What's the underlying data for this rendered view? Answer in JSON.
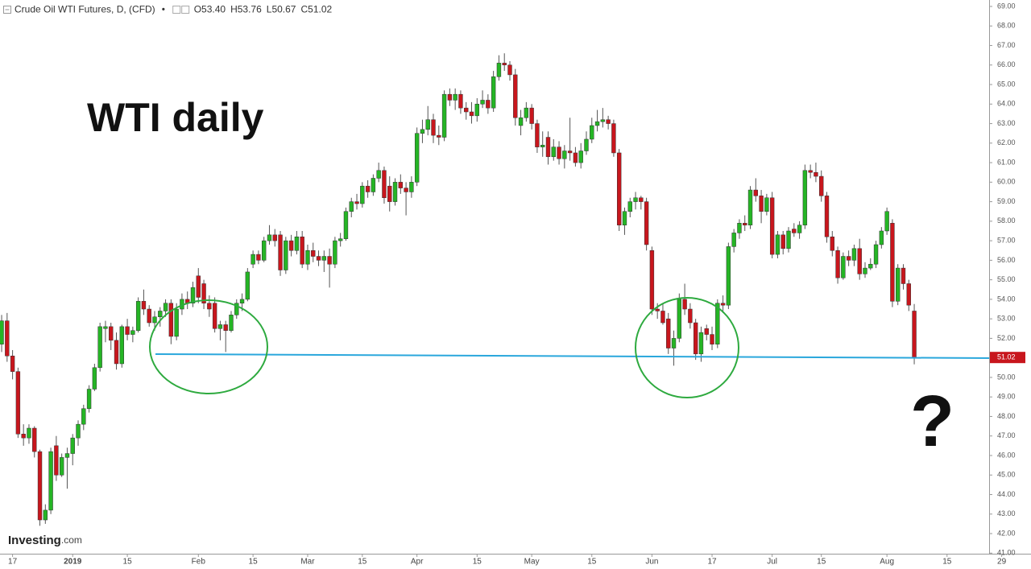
{
  "header": {
    "title": "Crude Oil WTI Futures, D, (CFD)",
    "fields": [
      {
        "label": "O",
        "value": "53.40"
      },
      {
        "label": "H",
        "value": "53.76"
      },
      {
        "label": "L",
        "value": "50.67"
      },
      {
        "label": "C",
        "value": "51.02"
      }
    ]
  },
  "branding": {
    "name": "Investing",
    "suffix": ".com"
  },
  "chart_data": {
    "type": "candlestick",
    "annotations": [
      "WTI daily",
      "?"
    ],
    "up_color": "#25b525",
    "down_color": "#c8161d",
    "xlim": [
      -0.3,
      180.7
    ],
    "ylim": [
      40.97,
      69.33
    ],
    "xticks": [
      {
        "value": 2,
        "label": "17"
      },
      {
        "value": 13,
        "label": "2019"
      },
      {
        "value": 23,
        "label": "15"
      },
      {
        "value": 36,
        "label": "Feb"
      },
      {
        "value": 46,
        "label": "15"
      },
      {
        "value": 56,
        "label": "Mar"
      },
      {
        "value": 66,
        "label": "15"
      },
      {
        "value": 76,
        "label": "Apr"
      },
      {
        "value": 87,
        "label": "15"
      },
      {
        "value": 97,
        "label": "May"
      },
      {
        "value": 108,
        "label": "15"
      },
      {
        "value": 119,
        "label": "Jun"
      },
      {
        "value": 130,
        "label": "17"
      },
      {
        "value": 141,
        "label": "Jul"
      },
      {
        "value": 150,
        "label": "15"
      },
      {
        "value": 162,
        "label": "Aug"
      },
      {
        "value": 173,
        "label": "15"
      },
      {
        "value": 183,
        "label": "29"
      }
    ],
    "yticks": [
      {
        "value": 41,
        "label": "41.00"
      },
      {
        "value": 42,
        "label": "42.00"
      },
      {
        "value": 43,
        "label": "43.00"
      },
      {
        "value": 44,
        "label": "44.00"
      },
      {
        "value": 45,
        "label": "45.00"
      },
      {
        "value": 46,
        "label": "46.00"
      },
      {
        "value": 47,
        "label": "47.00"
      },
      {
        "value": 48,
        "label": "48.00"
      },
      {
        "value": 49,
        "label": "49.00"
      },
      {
        "value": 50,
        "label": "50.00"
      },
      {
        "value": 51,
        "label": "51.00"
      },
      {
        "value": 52,
        "label": "52.00"
      },
      {
        "value": 53,
        "label": "53.00"
      },
      {
        "value": 54,
        "label": "54.00"
      },
      {
        "value": 55,
        "label": "55.00"
      },
      {
        "value": 56,
        "label": "56.00"
      },
      {
        "value": 57,
        "label": "57.00"
      },
      {
        "value": 58,
        "label": "58.00"
      },
      {
        "value": 59,
        "label": "59.00"
      },
      {
        "value": 60,
        "label": "60.00"
      },
      {
        "value": 61,
        "label": "61.00"
      },
      {
        "value": 62,
        "label": "62.00"
      },
      {
        "value": 63,
        "label": "63.00"
      },
      {
        "value": 64,
        "label": "64.00"
      },
      {
        "value": 65,
        "label": "65.00"
      },
      {
        "value": 66,
        "label": "66.00"
      },
      {
        "value": 67,
        "label": "67.00"
      },
      {
        "value": 68,
        "label": "68.00"
      },
      {
        "value": 69,
        "label": "69.00"
      }
    ],
    "ohlc": [
      [
        51.7,
        53.2,
        51.3,
        52.9
      ],
      [
        52.9,
        53.3,
        50.8,
        51.1
      ],
      [
        51.1,
        51.4,
        49.9,
        50.3
      ],
      [
        50.3,
        50.5,
        46.9,
        47.1
      ],
      [
        47.1,
        47.6,
        46.5,
        46.9
      ],
      [
        46.9,
        47.6,
        46.6,
        47.4
      ],
      [
        47.4,
        47.5,
        45.9,
        46.2
      ],
      [
        46.2,
        46.3,
        42.4,
        42.7
      ],
      [
        42.7,
        43.5,
        42.5,
        43.2
      ],
      [
        43.2,
        46.4,
        43.0,
        46.2
      ],
      [
        46.5,
        47.0,
        44.7,
        45.0
      ],
      [
        45.0,
        46.1,
        44.9,
        45.9
      ],
      [
        45.9,
        46.4,
        44.3,
        46.1
      ],
      [
        46.1,
        47.1,
        45.5,
        46.9
      ],
      [
        46.9,
        47.8,
        46.5,
        47.6
      ],
      [
        47.6,
        48.6,
        47.3,
        48.4
      ],
      [
        48.4,
        49.6,
        48.2,
        49.4
      ],
      [
        49.4,
        50.7,
        49.3,
        50.5
      ],
      [
        50.5,
        52.8,
        50.3,
        52.6
      ],
      [
        52.5,
        52.9,
        51.8,
        52.6
      ],
      [
        52.6,
        52.8,
        51.4,
        51.9
      ],
      [
        51.9,
        52.3,
        50.4,
        50.7
      ],
      [
        50.7,
        52.7,
        50.5,
        52.6
      ],
      [
        52.6,
        53.0,
        51.9,
        52.2
      ],
      [
        52.2,
        52.6,
        51.8,
        52.4
      ],
      [
        52.4,
        54.1,
        52.3,
        53.9
      ],
      [
        53.9,
        54.5,
        53.2,
        53.5
      ],
      [
        53.5,
        53.7,
        52.6,
        52.8
      ],
      [
        52.8,
        53.4,
        52.4,
        53.1
      ],
      [
        53.1,
        53.6,
        52.6,
        53.4
      ],
      [
        53.4,
        54.0,
        53.1,
        53.8
      ],
      [
        53.8,
        54.0,
        51.7,
        52.1
      ],
      [
        52.1,
        53.8,
        51.9,
        53.5
      ],
      [
        53.5,
        54.3,
        53.2,
        54.0
      ],
      [
        54.0,
        54.4,
        53.5,
        53.8
      ],
      [
        53.8,
        54.9,
        53.6,
        54.6
      ],
      [
        55.2,
        55.6,
        53.8,
        54.1
      ],
      [
        54.8,
        55.0,
        53.5,
        53.8
      ],
      [
        53.8,
        54.2,
        53.1,
        53.5
      ],
      [
        53.8,
        54.1,
        52.3,
        52.5
      ],
      [
        52.5,
        52.9,
        51.9,
        52.7
      ],
      [
        52.7,
        52.9,
        51.3,
        52.4
      ],
      [
        52.4,
        53.4,
        52.3,
        53.2
      ],
      [
        53.2,
        54.0,
        53.0,
        53.8
      ],
      [
        53.8,
        54.3,
        53.4,
        54.0
      ],
      [
        54.0,
        55.6,
        53.9,
        55.4
      ],
      [
        55.8,
        56.5,
        55.6,
        56.3
      ],
      [
        56.3,
        56.5,
        55.8,
        56.0
      ],
      [
        56.0,
        57.2,
        55.9,
        57.0
      ],
      [
        57.0,
        57.8,
        56.8,
        57.3
      ],
      [
        57.3,
        57.6,
        56.7,
        57.0
      ],
      [
        57.3,
        57.5,
        55.2,
        55.5
      ],
      [
        55.5,
        57.2,
        55.3,
        57.0
      ],
      [
        57.0,
        57.3,
        56.2,
        56.5
      ],
      [
        56.5,
        57.5,
        56.3,
        57.2
      ],
      [
        57.2,
        57.5,
        55.6,
        55.8
      ],
      [
        55.8,
        56.8,
        55.5,
        56.5
      ],
      [
        56.5,
        56.9,
        55.9,
        56.2
      ],
      [
        56.2,
        56.5,
        55.7,
        56.0
      ],
      [
        56.0,
        56.5,
        55.4,
        56.2
      ],
      [
        56.2,
        56.6,
        54.6,
        55.8
      ],
      [
        55.8,
        57.2,
        55.6,
        57.0
      ],
      [
        57.0,
        57.4,
        56.7,
        57.1
      ],
      [
        57.1,
        58.7,
        57.0,
        58.5
      ],
      [
        58.5,
        59.2,
        58.2,
        59.0
      ],
      [
        59.0,
        59.4,
        58.6,
        58.9
      ],
      [
        58.9,
        60.0,
        58.7,
        59.8
      ],
      [
        59.8,
        60.1,
        59.2,
        59.5
      ],
      [
        59.5,
        60.4,
        59.3,
        60.2
      ],
      [
        60.2,
        61.0,
        60.0,
        60.6
      ],
      [
        60.6,
        60.8,
        58.9,
        59.2
      ],
      [
        59.8,
        60.3,
        58.5,
        59.0
      ],
      [
        59.0,
        60.2,
        58.8,
        60.0
      ],
      [
        60.0,
        60.4,
        59.4,
        59.7
      ],
      [
        59.7,
        60.0,
        58.3,
        59.5
      ],
      [
        59.5,
        60.3,
        59.2,
        60.0
      ],
      [
        60.0,
        62.8,
        59.8,
        62.5
      ],
      [
        62.5,
        63.2,
        62.0,
        62.7
      ],
      [
        62.7,
        63.9,
        62.4,
        63.2
      ],
      [
        63.2,
        63.5,
        62.0,
        62.4
      ],
      [
        62.4,
        62.9,
        61.9,
        62.3
      ],
      [
        62.3,
        64.7,
        62.1,
        64.5
      ],
      [
        64.5,
        64.8,
        63.9,
        64.2
      ],
      [
        64.2,
        64.8,
        63.7,
        64.5
      ],
      [
        64.5,
        64.7,
        63.5,
        63.8
      ],
      [
        63.8,
        64.1,
        63.2,
        63.6
      ],
      [
        63.6,
        64.1,
        63.0,
        63.4
      ],
      [
        63.4,
        64.3,
        63.1,
        64.0
      ],
      [
        64.0,
        64.7,
        63.8,
        64.2
      ],
      [
        64.2,
        64.5,
        63.5,
        63.8
      ],
      [
        63.8,
        65.7,
        63.6,
        65.4
      ],
      [
        65.4,
        66.5,
        65.2,
        66.1
      ],
      [
        66.1,
        66.6,
        65.7,
        66.0
      ],
      [
        66.0,
        66.2,
        65.2,
        65.5
      ],
      [
        65.5,
        65.8,
        62.9,
        63.3
      ],
      [
        62.9,
        63.7,
        62.4,
        63.3
      ],
      [
        63.3,
        64.1,
        63.1,
        63.8
      ],
      [
        63.8,
        64.0,
        62.7,
        63.0
      ],
      [
        63.0,
        63.2,
        61.5,
        61.8
      ],
      [
        61.8,
        62.6,
        61.3,
        61.9
      ],
      [
        62.3,
        62.6,
        60.9,
        61.3
      ],
      [
        61.3,
        62.2,
        61.1,
        61.8
      ],
      [
        61.8,
        62.1,
        60.9,
        61.2
      ],
      [
        61.2,
        61.9,
        60.7,
        61.6
      ],
      [
        61.6,
        63.3,
        61.1,
        61.5
      ],
      [
        61.5,
        61.8,
        60.8,
        61.0
      ],
      [
        61.0,
        62.0,
        60.7,
        61.6
      ],
      [
        61.6,
        62.6,
        61.4,
        62.2
      ],
      [
        62.2,
        63.3,
        62.0,
        62.9
      ],
      [
        62.9,
        63.7,
        62.6,
        63.1
      ],
      [
        63.1,
        63.8,
        62.8,
        63.2
      ],
      [
        63.2,
        63.4,
        62.7,
        63.0
      ],
      [
        63.0,
        63.2,
        61.3,
        61.5
      ],
      [
        61.5,
        61.7,
        57.5,
        57.8
      ],
      [
        57.8,
        58.7,
        57.3,
        58.5
      ],
      [
        58.5,
        59.2,
        58.2,
        59.0
      ],
      [
        59.0,
        59.5,
        58.6,
        59.2
      ],
      [
        59.2,
        59.3,
        58.6,
        59.0
      ],
      [
        59.0,
        59.2,
        56.5,
        56.8
      ],
      [
        56.5,
        56.7,
        53.2,
        53.5
      ],
      [
        53.5,
        53.8,
        53.0,
        53.4
      ],
      [
        53.4,
        53.8,
        52.7,
        52.8
      ],
      [
        53.0,
        53.3,
        51.2,
        51.5
      ],
      [
        51.5,
        52.4,
        50.6,
        52.0
      ],
      [
        52.0,
        54.3,
        51.8,
        54.0
      ],
      [
        54.0,
        54.8,
        53.2,
        53.5
      ],
      [
        53.5,
        53.8,
        52.5,
        52.8
      ],
      [
        52.8,
        53.0,
        50.9,
        51.2
      ],
      [
        51.2,
        52.6,
        50.8,
        52.3
      ],
      [
        52.5,
        52.7,
        51.9,
        52.2
      ],
      [
        52.2,
        52.6,
        51.4,
        51.7
      ],
      [
        51.7,
        54.0,
        51.5,
        53.8
      ],
      [
        53.8,
        54.2,
        53.3,
        53.7
      ],
      [
        53.7,
        56.9,
        53.5,
        56.7
      ],
      [
        56.7,
        57.6,
        56.4,
        57.4
      ],
      [
        57.4,
        58.1,
        57.1,
        57.9
      ],
      [
        57.9,
        58.3,
        57.5,
        57.8
      ],
      [
        57.8,
        59.8,
        57.6,
        59.6
      ],
      [
        59.6,
        60.2,
        59.0,
        59.3
      ],
      [
        59.3,
        59.6,
        57.9,
        58.5
      ],
      [
        58.5,
        59.4,
        58.3,
        59.2
      ],
      [
        59.2,
        59.5,
        56.1,
        56.3
      ],
      [
        56.3,
        57.5,
        56.1,
        57.3
      ],
      [
        57.3,
        57.5,
        56.3,
        56.6
      ],
      [
        56.6,
        57.7,
        56.4,
        57.5
      ],
      [
        57.6,
        57.9,
        57.2,
        57.4
      ],
      [
        57.4,
        58.0,
        57.1,
        57.8
      ],
      [
        57.8,
        60.9,
        57.6,
        60.6
      ],
      [
        60.6,
        60.9,
        60.2,
        60.5
      ],
      [
        60.5,
        61.0,
        60.0,
        60.3
      ],
      [
        60.3,
        60.6,
        59.0,
        59.3
      ],
      [
        59.3,
        59.5,
        56.9,
        57.2
      ],
      [
        57.2,
        57.5,
        56.2,
        56.5
      ],
      [
        56.5,
        56.7,
        54.8,
        55.1
      ],
      [
        55.1,
        56.4,
        55.0,
        56.2
      ],
      [
        56.2,
        56.5,
        55.7,
        56.0
      ],
      [
        56.0,
        56.8,
        55.7,
        56.6
      ],
      [
        56.6,
        57.1,
        55.0,
        55.3
      ],
      [
        55.3,
        55.9,
        55.1,
        55.6
      ],
      [
        55.6,
        56.1,
        55.5,
        55.8
      ],
      [
        55.8,
        57.0,
        55.6,
        56.8
      ],
      [
        56.8,
        57.7,
        56.6,
        57.5
      ],
      [
        57.5,
        58.7,
        57.3,
        58.5
      ],
      [
        57.9,
        58.1,
        53.6,
        53.9
      ],
      [
        53.9,
        55.8,
        53.7,
        55.6
      ],
      [
        55.6,
        55.8,
        54.5,
        54.8
      ],
      [
        54.8,
        55.0,
        53.4,
        53.7
      ],
      [
        53.4,
        53.76,
        50.67,
        51.02
      ]
    ]
  }
}
